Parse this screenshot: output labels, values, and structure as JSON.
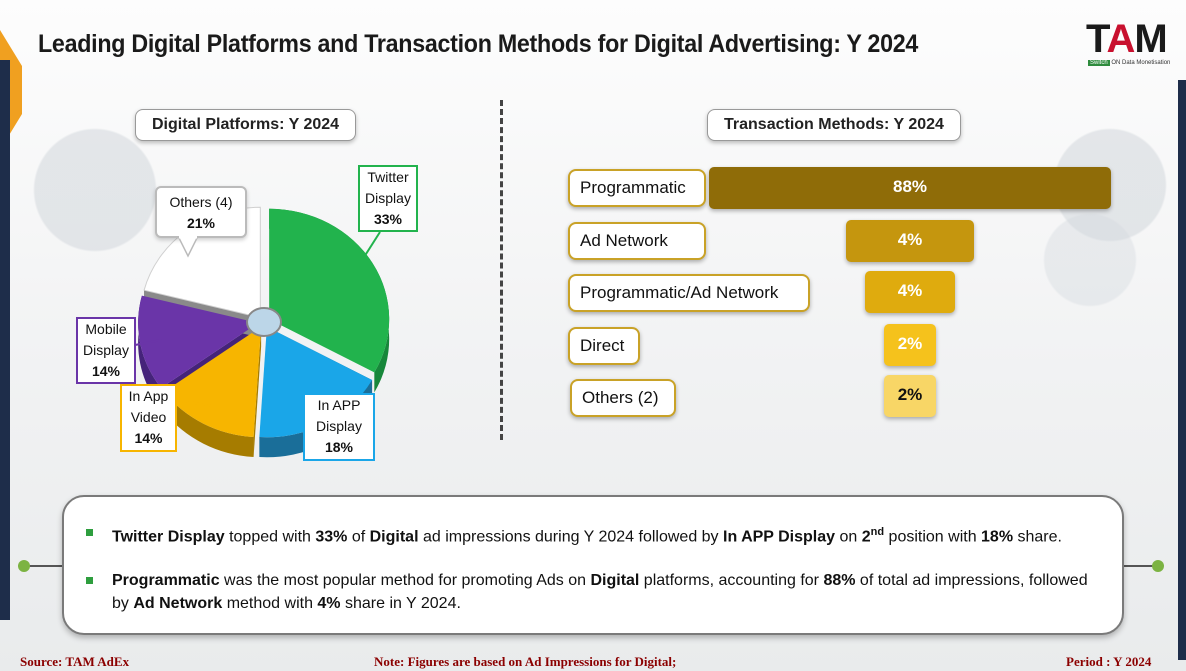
{
  "title": "Leading Digital Platforms and Transaction Methods for Digital Advertising: Y 2024",
  "logo": {
    "text_t": "T",
    "text_a": "A",
    "text_m": "M",
    "tag_badge": "Switch",
    "tag_on": "ON",
    "tag_rest": "Data Monetisation"
  },
  "left_panel_label": "Digital Platforms: Y 2024",
  "right_panel_label": "Transaction Methods: Y 2024",
  "chart_data": [
    {
      "type": "pie",
      "title": "Digital Platforms: Y 2024",
      "categories": [
        "Twitter Display",
        "In APP Display",
        "In App Video",
        "Mobile Display",
        "Others (4)"
      ],
      "values": [
        33,
        18,
        14,
        14,
        21
      ],
      "value_labels": [
        "33%",
        "18%",
        "14%",
        "14%",
        "21%"
      ],
      "colors": [
        "#22b34d",
        "#1aa6e8",
        "#f7b500",
        "#6a35a8",
        "#ffffff"
      ],
      "side_colors": [
        "#17873a",
        "#1a6e99",
        "#a67c00",
        "#45237a",
        "#8a8a8a"
      ],
      "callout_lines": [
        [
          "Twitter",
          "Display"
        ],
        [
          "In APP",
          "Display"
        ],
        [
          "In App",
          "Video"
        ],
        [
          "Mobile",
          "Display"
        ],
        [
          "Others (4)"
        ]
      ],
      "callout_borders": [
        "#22b34d",
        "#1aa6e8",
        "#f7b500",
        "#6a35a8",
        "#bbbbbb"
      ]
    },
    {
      "type": "bar",
      "title": "Transaction Methods: Y 2024",
      "categories": [
        "Programmatic",
        "Ad Network",
        "Programmatic/Ad Network",
        "Direct",
        "Others (2)"
      ],
      "values": [
        88,
        4,
        4,
        2,
        2
      ],
      "value_labels": [
        "88%",
        "4%",
        "4%",
        "2%",
        "2%"
      ],
      "colors": [
        "#8f6c08",
        "#c5960e",
        "#dfab0e",
        "#f5c21c",
        "#f8d666"
      ],
      "text_colors": [
        "#ffffff",
        "#ffffff",
        "#ffffff",
        "#ffffff",
        "#111111"
      ]
    }
  ],
  "insights": {
    "b1_p1_bold": "Twitter Display",
    "b1_p2": " topped with ",
    "b1_p3_bold": "33%",
    "b1_p4": " of ",
    "b1_p5_bold": "Digital",
    "b1_p6": " ad impressions during Y 2024 followed by ",
    "b1_p7_bold": "In APP Display",
    "b1_p8": " on ",
    "b1_p9_bold": "2",
    "b1_p9_sup": "nd",
    "b1_p10": " position with ",
    "b1_p11_bold": "18%",
    "b1_p12": " share.",
    "b2_p1_bold": "Programmatic",
    "b2_p2": " was the most popular method for promoting Ads on ",
    "b2_p3_bold": "Digital",
    "b2_p4": " platforms, accounting for ",
    "b2_p5_bold": "88%",
    "b2_p6": " of total ad impressions, followed by ",
    "b2_p7_bold": "Ad Network",
    "b2_p8": " method with ",
    "b2_p9_bold": "4%",
    "b2_p10": " share in Y 2024."
  },
  "footer": {
    "source": "Source: TAM AdEx",
    "note": "Note: Figures are based on Ad Impressions for Digital;",
    "period": "Period : Y 2024"
  }
}
